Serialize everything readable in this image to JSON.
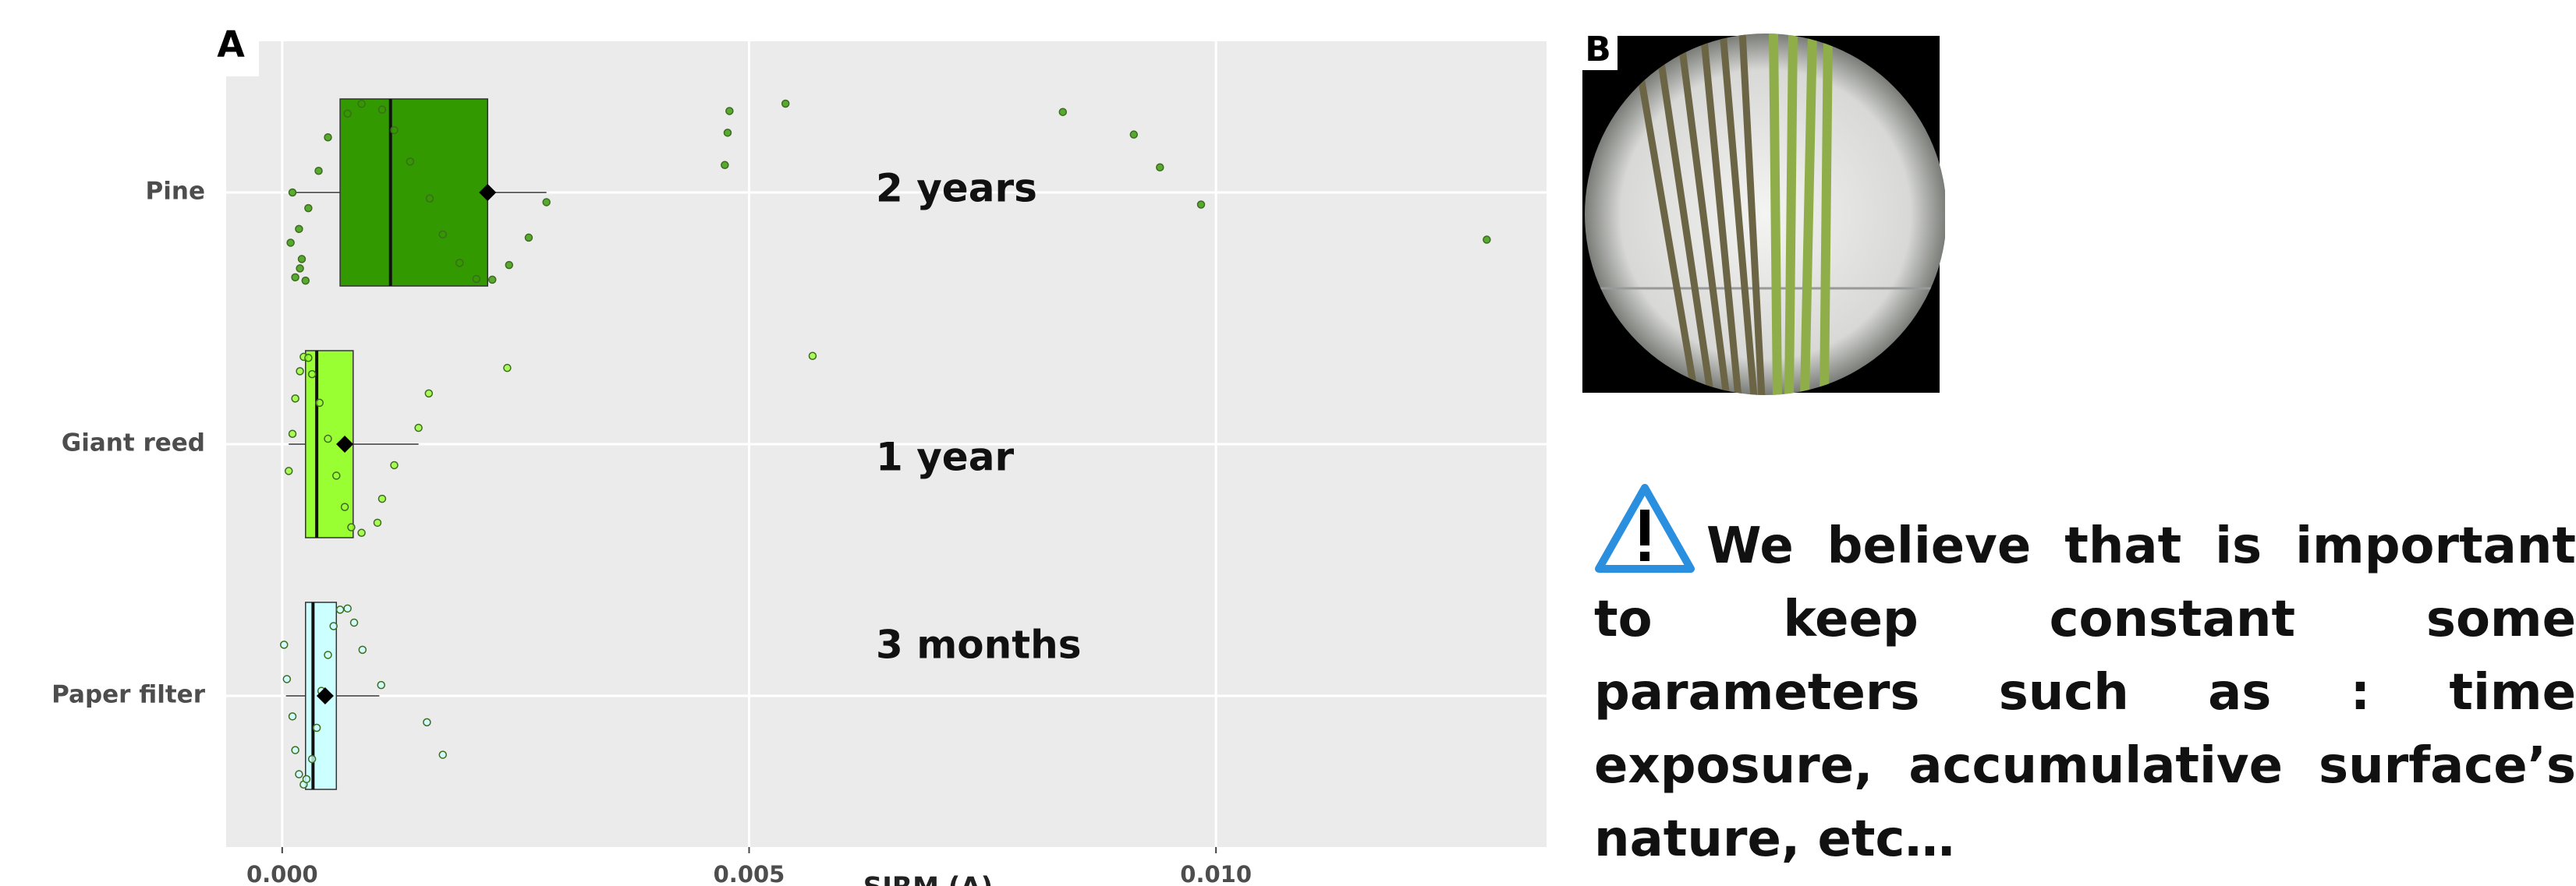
{
  "chart_data": {
    "type": "boxplot",
    "panel_label": "A",
    "x_label": "SIRM (A)",
    "categories": [
      "Pine",
      "Giant reed",
      "Paper filter"
    ],
    "colors": [
      "#339900",
      "#99ff33",
      "#ccffff"
    ],
    "annotations": [
      "2 years",
      "1 year",
      "3 months"
    ],
    "boxes": [
      {
        "whislo": 0.00014,
        "q1": 0.00062,
        "med": 0.00116,
        "q3": 0.0022,
        "whishi": 0.00283,
        "mean": 0.0022,
        "points": [
          0.00011,
          0.00018,
          0.00021,
          0.00014,
          0.00025,
          0.00019,
          9e-05,
          0.00028,
          0.00039,
          0.00049,
          0.0007,
          0.00085,
          0.00107,
          0.0012,
          0.00137,
          0.00158,
          0.00172,
          0.0019,
          0.00208,
          0.00225,
          0.00243,
          0.00264,
          0.00283,
          0.00474,
          0.00477,
          0.00479,
          0.00539,
          0.00836,
          0.00912,
          0.0094,
          0.00984,
          0.0129
        ]
      },
      {
        "whislo": 7e-05,
        "q1": 0.00025,
        "med": 0.00037,
        "q3": 0.00076,
        "whishi": 0.00146,
        "mean": 0.00067,
        "points": [
          7e-05,
          0.00011,
          0.00014,
          0.00019,
          0.00023,
          0.00028,
          0.00032,
          0.0004,
          0.00049,
          0.00058,
          0.00067,
          0.00074,
          0.00085,
          0.00102,
          0.00107,
          0.0012,
          0.00146,
          0.00157,
          0.00241,
          0.00568
        ]
      },
      {
        "whislo": 4e-05,
        "q1": 0.00025,
        "med": 0.00033,
        "q3": 0.00058,
        "whishi": 0.00104,
        "mean": 0.00046,
        "points": [
          2e-05,
          5e-05,
          0.00011,
          0.00014,
          0.00018,
          0.00023,
          0.00026,
          0.00032,
          0.00037,
          0.00042,
          0.00049,
          0.00055,
          0.00062,
          0.0007,
          0.00077,
          0.00086,
          0.00106,
          0.00155,
          0.00172
        ]
      }
    ],
    "xlim": [
      -0.0006,
      0.01354
    ],
    "xticks": [
      {
        "value": 0,
        "label": "0.000"
      },
      {
        "value": 0.005,
        "label": "0.005"
      },
      {
        "value": 0.01,
        "label": "0.010"
      }
    ],
    "grid": true
  },
  "photo": {
    "panel_label": "B"
  },
  "note": {
    "text": "We believe that is important to keep constant some parameters such as : time exposure, accumulative surface’s nature, etc…"
  }
}
